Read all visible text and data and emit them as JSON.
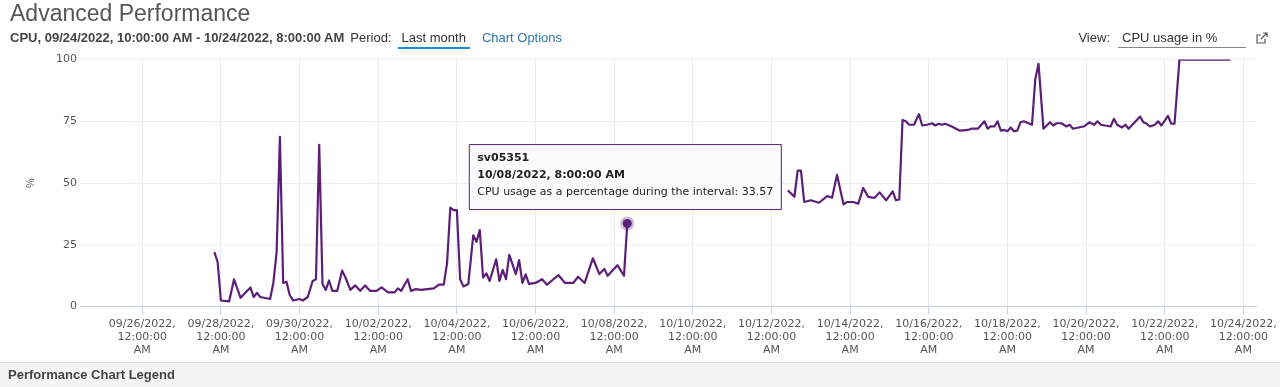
{
  "chart_data": {
    "type": "line",
    "title": "Advanced Performance",
    "subtitle": "CPU, 09/24/2022, 10:00:00 AM - 10/24/2022, 8:00:00 AM",
    "ylabel": "%",
    "xlim": [
      "2022-09-24T10:00",
      "2022-10-24T08:00"
    ],
    "xticks": [
      {
        "value": "2022-09-26",
        "label": "09/26/2022, 12:00:00 AM"
      },
      {
        "value": "2022-09-28",
        "label": "09/28/2022, 12:00:00 AM"
      },
      {
        "value": "2022-09-30",
        "label": "09/30/2022, 12:00:00 AM"
      },
      {
        "value": "2022-10-02",
        "label": "10/02/2022, 12:00:00 AM"
      },
      {
        "value": "2022-10-04",
        "label": "10/04/2022, 12:00:00 AM"
      },
      {
        "value": "2022-10-06",
        "label": "10/06/2022, 12:00:00 AM"
      },
      {
        "value": "2022-10-08",
        "label": "10/08/2022, 12:00:00 AM"
      },
      {
        "value": "2022-10-10",
        "label": "10/10/2022, 12:00:00 AM"
      },
      {
        "value": "2022-10-12",
        "label": "10/12/2022, 12:00:00 AM"
      },
      {
        "value": "2022-10-14",
        "label": "10/14/2022, 12:00:00 AM"
      },
      {
        "value": "2022-10-16",
        "label": "10/16/2022, 12:00:00 AM"
      },
      {
        "value": "2022-10-18",
        "label": "10/18/2022, 12:00:00 AM"
      },
      {
        "value": "2022-10-20",
        "label": "10/20/2022, 12:00:00 AM"
      },
      {
        "value": "2022-10-22",
        "label": "10/22/2022, 12:00:00 AM"
      },
      {
        "value": "2022-10-24",
        "label": "10/24/2022, 12:00:00 AM"
      }
    ],
    "ylim": [
      0,
      100
    ],
    "yticks": [
      0,
      25,
      50,
      75,
      100
    ],
    "grid": true,
    "legend": false,
    "marker": "none",
    "line_style": "solid",
    "x": [
      "2022-09-27T20:00",
      "2022-09-27T22:00",
      "2022-09-28T00:00",
      "2022-09-28T05:00",
      "2022-09-28T08:00",
      "2022-09-28T12:00",
      "2022-09-28T18:00",
      "2022-09-28T20:00",
      "2022-09-28T22:00",
      "2022-09-29T00:00",
      "2022-09-29T06:00",
      "2022-09-29T08:00",
      "2022-09-29T10:00",
      "2022-09-29T12:00",
      "2022-09-29T14:00",
      "2022-09-29T16:00",
      "2022-09-29T18:00",
      "2022-09-29T20:00",
      "2022-09-30T00:00",
      "2022-09-30T02:00",
      "2022-09-30T05:00",
      "2022-09-30T08:00",
      "2022-09-30T10:00",
      "2022-09-30T12:00",
      "2022-09-30T14:00",
      "2022-09-30T16:00",
      "2022-09-30T18:00",
      "2022-09-30T20:00",
      "2022-09-30T23:00",
      "2022-10-01T02:00",
      "2022-10-01T04:00",
      "2022-10-01T07:00",
      "2022-10-01T10:00",
      "2022-10-01T13:00",
      "2022-10-01T16:00",
      "2022-10-01T19:00",
      "2022-10-01T23:00",
      "2022-10-02T02:00",
      "2022-10-02T06:00",
      "2022-10-02T10:00",
      "2022-10-02T12:00",
      "2022-10-02T14:00",
      "2022-10-02T18:00",
      "2022-10-02T20:00",
      "2022-10-02T23:00",
      "2022-10-03T02:00",
      "2022-10-03T06:00",
      "2022-10-03T10:00",
      "2022-10-03T13:00",
      "2022-10-03T16:00",
      "2022-10-03T18:00",
      "2022-10-03T20:00",
      "2022-10-03T22:00",
      "2022-10-04T00:00",
      "2022-10-04T02:00",
      "2022-10-04T04:00",
      "2022-10-04T07:00",
      "2022-10-04T10:00",
      "2022-10-04T12:00",
      "2022-10-04T14:00",
      "2022-10-04T16:00",
      "2022-10-04T18:00",
      "2022-10-04T20:00",
      "2022-10-05T00:00",
      "2022-10-05T02:00",
      "2022-10-05T04:00",
      "2022-10-05T06:00",
      "2022-10-05T08:00",
      "2022-10-05T12:00",
      "2022-10-05T14:00",
      "2022-10-05T16:00",
      "2022-10-05T18:00",
      "2022-10-05T20:00",
      "2022-10-06T00:00",
      "2022-10-06T04:00",
      "2022-10-06T07:00",
      "2022-10-06T10:00",
      "2022-10-06T14:00",
      "2022-10-06T18:00",
      "2022-10-06T23:00",
      "2022-10-07T02:00",
      "2022-10-07T06:00",
      "2022-10-07T11:00",
      "2022-10-07T15:00",
      "2022-10-07T18:00",
      "2022-10-07T20:00",
      "2022-10-08T02:00",
      "2022-10-08T06:00",
      "2022-10-08T08:00",
      "2022-10-08T10:00",
      "2022-10-08T14:00",
      "2022-10-08T20:00",
      "2022-10-09T06:00",
      "2022-10-09T16:00",
      "2022-10-09T18:00",
      "2022-10-09T20:00",
      "2022-10-09T22:00",
      "2022-10-10T10:00",
      "2022-10-10T18:00",
      "2022-10-10T20:00",
      "2022-10-10T22:00",
      "2022-10-11T06:00",
      "2022-10-11T18:00",
      "2022-10-12T06:00",
      "2022-10-12T10:00",
      "2022-10-12T14:00",
      "2022-10-12T16:00",
      "2022-10-12T18:00",
      "2022-10-12T20:00",
      "2022-10-13T00:00",
      "2022-10-13T05:00",
      "2022-10-13T10:00",
      "2022-10-13T13:00",
      "2022-10-13T16:00",
      "2022-10-13T20:00",
      "2022-10-13T22:00",
      "2022-10-14T02:00",
      "2022-10-14T05:00",
      "2022-10-14T08:00",
      "2022-10-14T11:00",
      "2022-10-14T15:00",
      "2022-10-14T18:00",
      "2022-10-14T22:00",
      "2022-10-15T02:00",
      "2022-10-15T04:00",
      "2022-10-15T06:00",
      "2022-10-15T08:00",
      "2022-10-15T10:00",
      "2022-10-15T12:00",
      "2022-10-15T15:00",
      "2022-10-15T18:00",
      "2022-10-15T20:00",
      "2022-10-15T23:00",
      "2022-10-16T02:00",
      "2022-10-16T04:00",
      "2022-10-16T06:00",
      "2022-10-16T08:00",
      "2022-10-16T10:00",
      "2022-10-16T14:00",
      "2022-10-16T19:00",
      "2022-10-17T00:00",
      "2022-10-17T02:00",
      "2022-10-17T06:00",
      "2022-10-17T10:00",
      "2022-10-17T12:00",
      "2022-10-17T14:00",
      "2022-10-17T16:00",
      "2022-10-17T18:00",
      "2022-10-17T20:00",
      "2022-10-17T22:00",
      "2022-10-18T00:00",
      "2022-10-18T02:00",
      "2022-10-18T04:00",
      "2022-10-18T06:00",
      "2022-10-18T08:00",
      "2022-10-18T10:00",
      "2022-10-18T15:00",
      "2022-10-18T17:00",
      "2022-10-18T19:00",
      "2022-10-18T22:00",
      "2022-10-19T02:00",
      "2022-10-19T04:00",
      "2022-10-19T06:00",
      "2022-10-19T09:00",
      "2022-10-19T12:00",
      "2022-10-19T14:00",
      "2022-10-19T16:00",
      "2022-10-19T23:00",
      "2022-10-20T02:00",
      "2022-10-20T05:00",
      "2022-10-20T07:00",
      "2022-10-20T09:00",
      "2022-10-20T15:00",
      "2022-10-20T17:00",
      "2022-10-20T19:00",
      "2022-10-20T22:00",
      "2022-10-21T00:00",
      "2022-10-21T02:00",
      "2022-10-21T09:00",
      "2022-10-21T11:00",
      "2022-10-21T13:00",
      "2022-10-21T15:00",
      "2022-10-21T18:00",
      "2022-10-21T20:00",
      "2022-10-21T22:00",
      "2022-10-22T02:00",
      "2022-10-22T04:00",
      "2022-10-22T06:00",
      "2022-10-22T09:00",
      "2022-10-23T00:00",
      "2022-10-23T16:00"
    ],
    "series": [
      {
        "color": "#5b1f78",
        "values": [
          22,
          18,
          2.4,
          2,
          11,
          3.5,
          7.7,
          3.8,
          5.5,
          3.8,
          3,
          9.5,
          22,
          68.7,
          9.5,
          10,
          4.6,
          2.4,
          3,
          2.4,
          3.8,
          10.3,
          11,
          65.5,
          9.1,
          6.7,
          10.5,
          6.3,
          6.3,
          14.5,
          11.7,
          6.7,
          8.5,
          6.3,
          8.5,
          6.3,
          6.3,
          7.7,
          5.7,
          5.7,
          7.3,
          6.3,
          11,
          6.3,
          7,
          6.7,
          7,
          7.3,
          8.8,
          8.8,
          17.4,
          40,
          39,
          39,
          11,
          8.1,
          9.1,
          28.8,
          26.2,
          30.9,
          11.7,
          13.4,
          10.3,
          19.1,
          10.3,
          14.8,
          11,
          20.9,
          13.1,
          18.8,
          9.5,
          13,
          9.1,
          9.5,
          11,
          8.8,
          10.5,
          12.7,
          9.5,
          9.5,
          12,
          9.5,
          19.5,
          13.1,
          15.2,
          12.4,
          16.7,
          12.4,
          33.57,
          null,
          null,
          null,
          null,
          null,
          null,
          null,
          null,
          null,
          null,
          null,
          null,
          null,
          null,
          null,
          47,
          44.4,
          55,
          55,
          42.3,
          43,
          42,
          44.7,
          44,
          53.3,
          41.3,
          42.3,
          42.3,
          41.6,
          48,
          44.4,
          44,
          46.2,
          43,
          46.6,
          43,
          43.3,
          75.5,
          75,
          73.6,
          73.6,
          77.9,
          73.3,
          73.6,
          74.2,
          73.3,
          74,
          73.6,
          74,
          72.9,
          71.2,
          71.5,
          72,
          72,
          75,
          72,
          73,
          72.9,
          75,
          71.2,
          71.5,
          71,
          72.5,
          71,
          71.2,
          74.6,
          75,
          73.6,
          92,
          98.3,
          72,
          74.6,
          73.3,
          74.2,
          74.2,
          72.9,
          73.6,
          72,
          73,
          74.6,
          73.6,
          75,
          73.6,
          72.9,
          76,
          73.6,
          72.5,
          73.6,
          72,
          76.9,
          74.6,
          74,
          72.9,
          73.6,
          75,
          73.3,
          77.2,
          74,
          74,
          100,
          100,
          100
        ]
      }
    ],
    "annotations": [
      {
        "text": "sv05351\n10/08/2022, 8:00:00 AM\nCPU usage as a percentage during the interval: 33.57",
        "x": "2022-10-08T08:00",
        "y": 33.57
      },
      "Period:",
      "Last month",
      "Chart Options",
      "View:",
      "CPU usage in %",
      "Performance Chart Legend"
    ]
  }
}
